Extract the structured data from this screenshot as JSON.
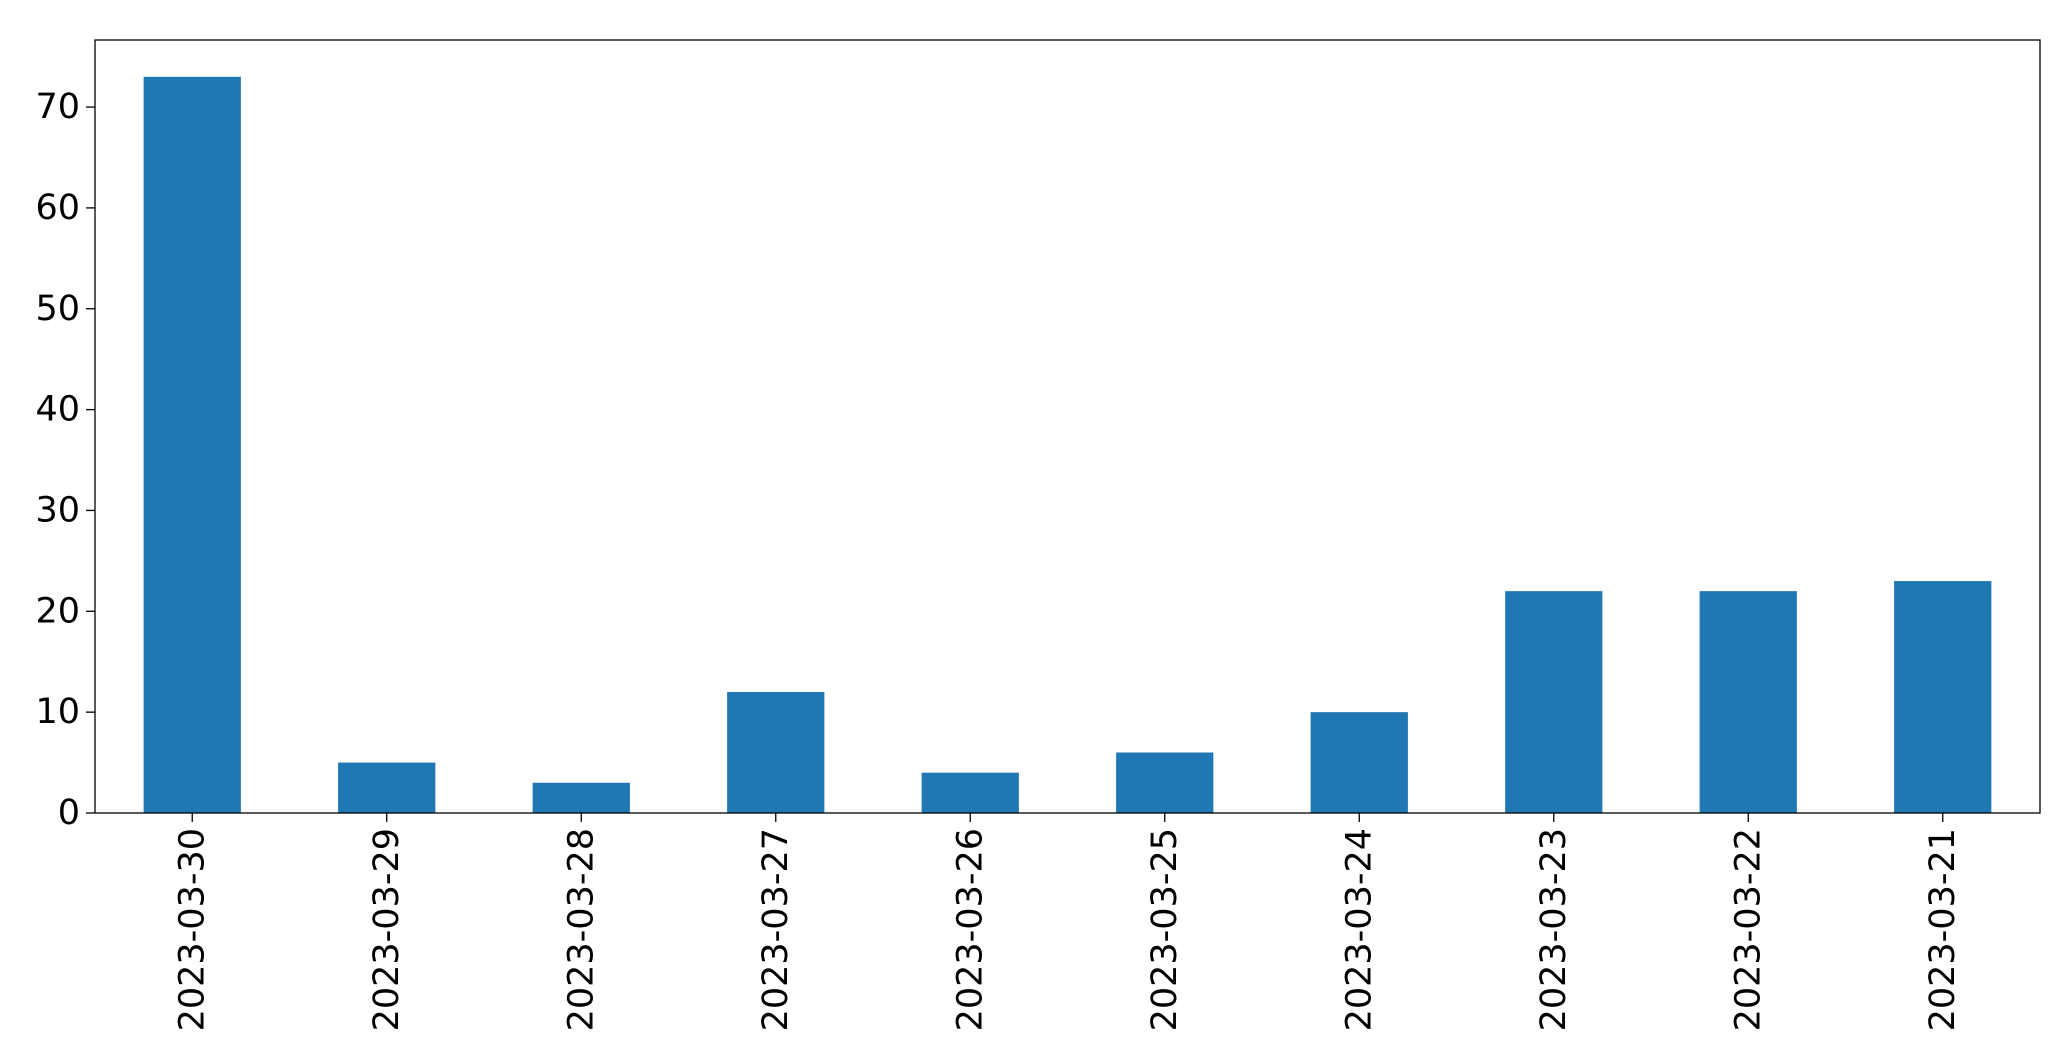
{
  "chart_data": {
    "type": "bar",
    "title": "",
    "xlabel": "",
    "ylabel": "",
    "categories": [
      "2023-03-30",
      "2023-03-29",
      "2023-03-28",
      "2023-03-27",
      "2023-03-26",
      "2023-03-25",
      "2023-03-24",
      "2023-03-23",
      "2023-03-22",
      "2023-03-21"
    ],
    "values": [
      73,
      5,
      3,
      12,
      4,
      6,
      10,
      22,
      22,
      23
    ],
    "ylim": [
      0,
      76.65
    ],
    "yticks": [
      0,
      10,
      20,
      30,
      40,
      50,
      60,
      70
    ],
    "grid": false,
    "legend": "none",
    "bar_color": "#1f77b4"
  }
}
